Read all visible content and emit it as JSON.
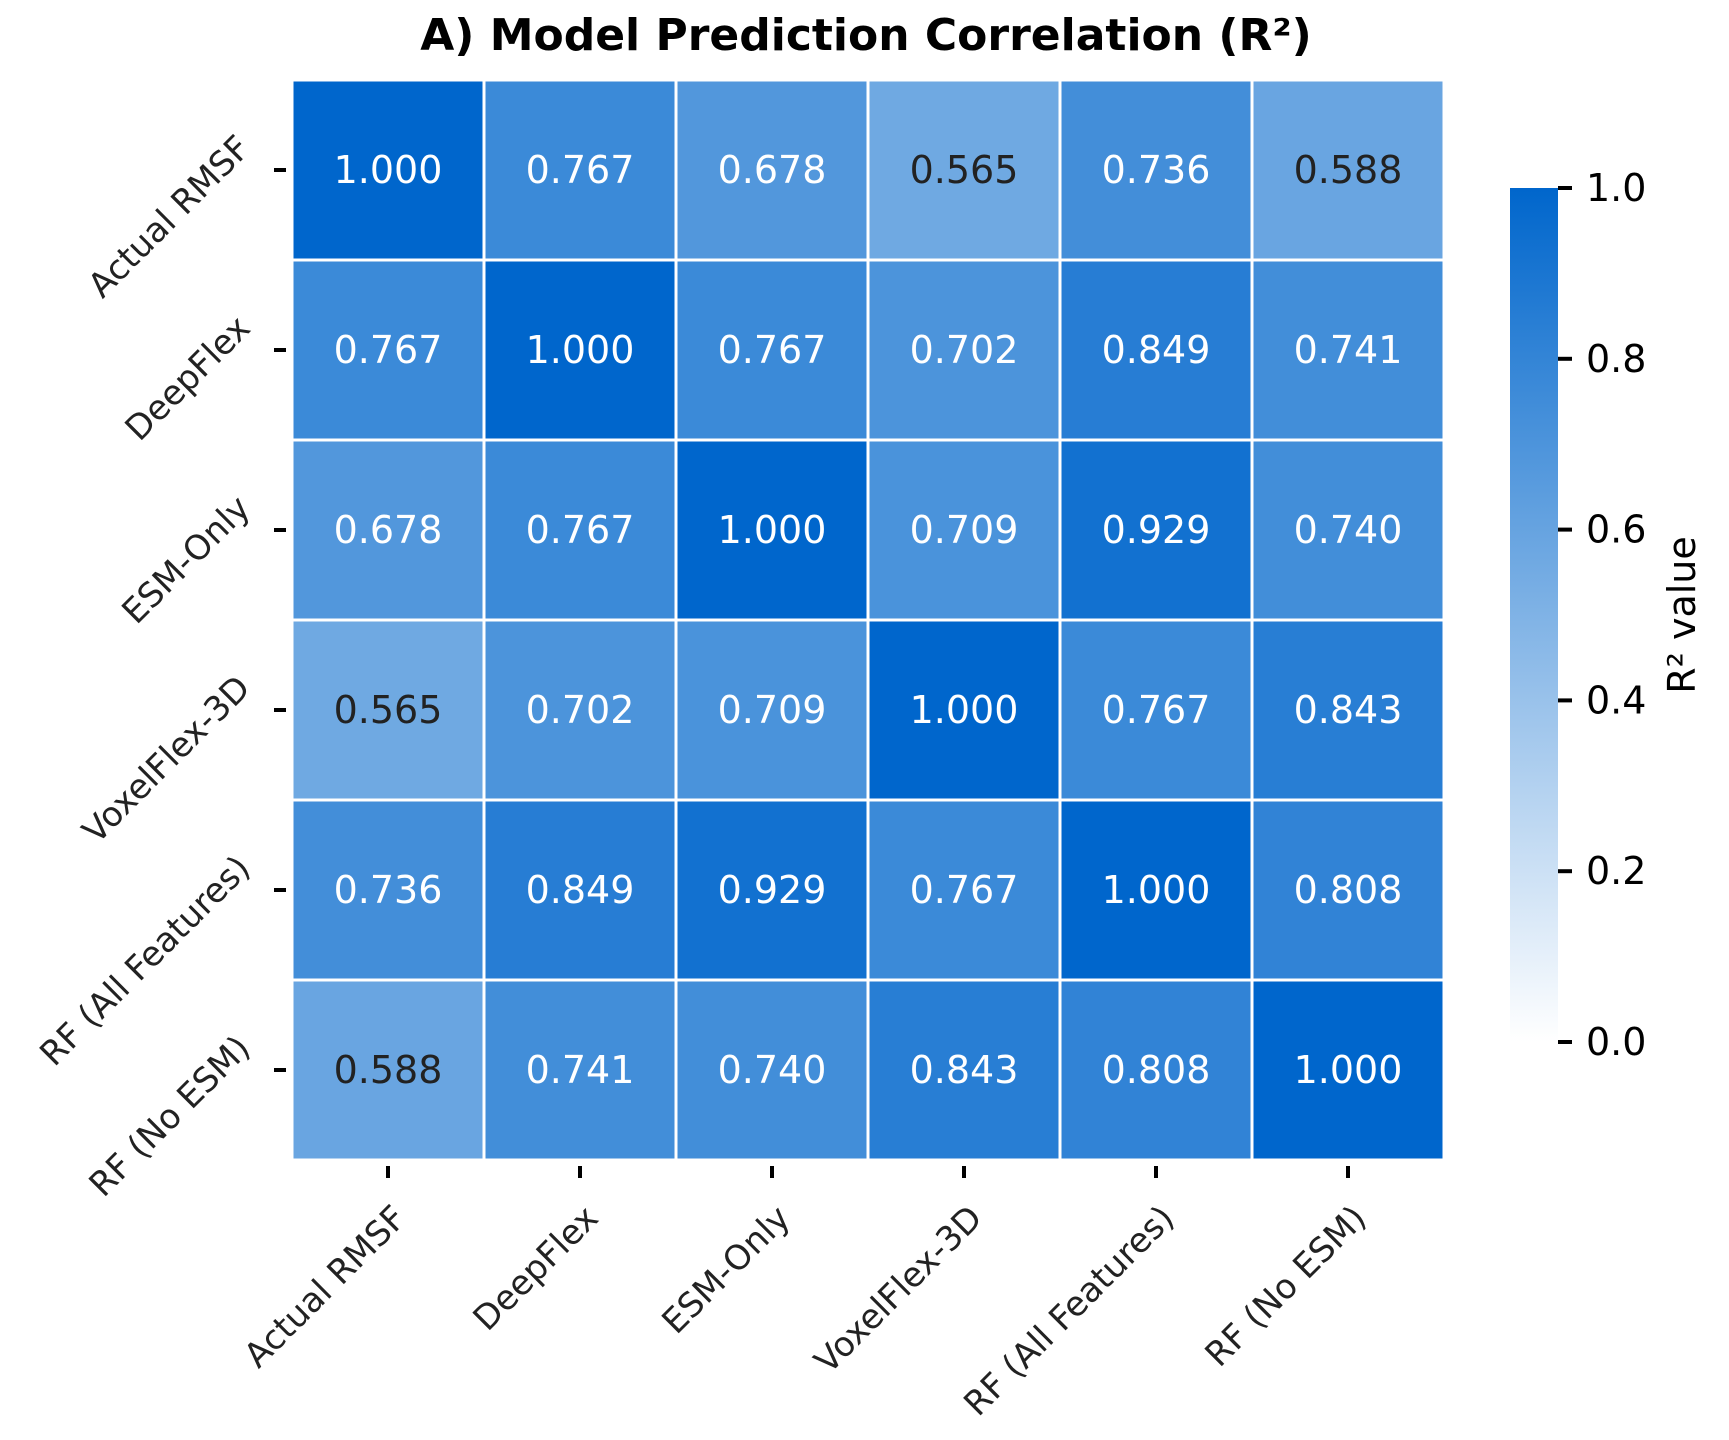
{
  "chart_data": {
    "type": "heatmap",
    "title": "A) Model Prediction Correlation (R²)",
    "x_labels": [
      "Actual RMSF",
      "DeepFlex",
      "ESM-Only",
      "VoxelFlex-3D",
      "RF (All Features)",
      "RF (No ESM)"
    ],
    "y_labels": [
      "Actual RMSF",
      "DeepFlex",
      "ESM-Only",
      "VoxelFlex-3D",
      "RF (All Features)",
      "RF (No ESM)"
    ],
    "values": [
      [
        1.0,
        0.767,
        0.678,
        0.565,
        0.736,
        0.588
      ],
      [
        0.767,
        1.0,
        0.767,
        0.702,
        0.849,
        0.741
      ],
      [
        0.678,
        0.767,
        1.0,
        0.709,
        0.929,
        0.74
      ],
      [
        0.565,
        0.702,
        0.709,
        1.0,
        0.767,
        0.843
      ],
      [
        0.736,
        0.849,
        0.929,
        0.767,
        1.0,
        0.808
      ],
      [
        0.588,
        0.741,
        0.74,
        0.843,
        0.808,
        1.0
      ]
    ],
    "value_format": "0.000",
    "colorbar": {
      "label": "R² value",
      "range": [
        0,
        1
      ],
      "ticks": [
        0.0,
        0.2,
        0.4,
        0.6,
        0.8,
        1.0
      ],
      "tick_labels": [
        "0.0",
        "0.2",
        "0.4",
        "0.6",
        "0.8",
        "1.0"
      ],
      "color_low": "#ffffff",
      "color_high": "#0066cc"
    },
    "grid_color": "#ffffff",
    "annotation_light_text": "#ffffff",
    "annotation_dark_text": "#222222"
  }
}
